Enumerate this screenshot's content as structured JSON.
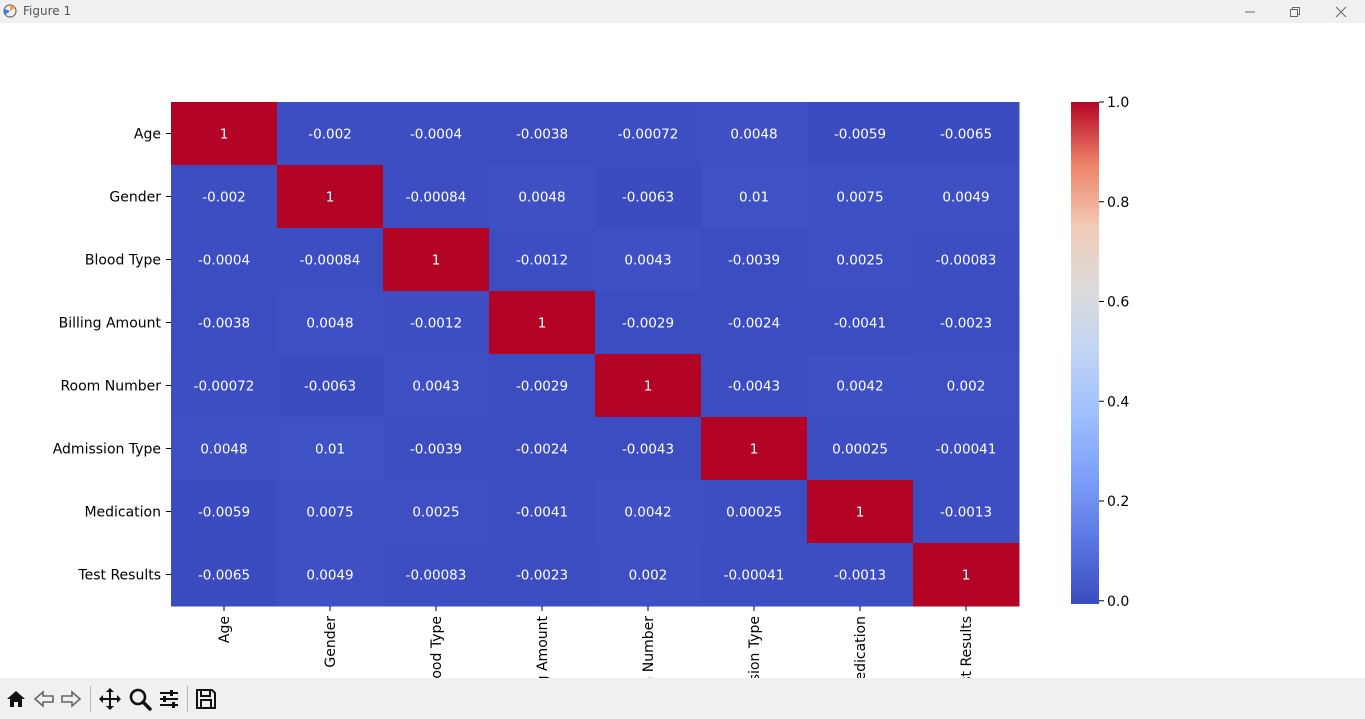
{
  "window": {
    "title": "Figure 1"
  },
  "toolbar": {
    "buttons": [
      "home-icon",
      "back-icon",
      "forward-icon",
      "pan-icon",
      "zoom-icon",
      "configure-icon",
      "save-icon"
    ]
  },
  "chart_data": {
    "type": "heatmap",
    "title": "",
    "xlabel": "",
    "ylabel": "",
    "colormap": "coolwarm",
    "row_labels": [
      "Age",
      "Gender",
      "Blood Type",
      "Billing Amount",
      "Room Number",
      "Admission Type",
      "Medication",
      "Test Results"
    ],
    "col_labels": [
      "Age",
      "Gender",
      "Blood Type",
      "Billing Amount",
      "Room Number",
      "Admission Type",
      "Medication",
      "Test Results"
    ],
    "values": [
      [
        1,
        -0.002,
        -0.0004,
        -0.0038,
        -0.00072,
        0.0048,
        -0.0059,
        -0.0065
      ],
      [
        -0.002,
        1,
        -0.00084,
        0.0048,
        -0.0063,
        0.01,
        0.0075,
        0.0049
      ],
      [
        -0.0004,
        -0.00084,
        1,
        -0.0012,
        0.0043,
        -0.0039,
        0.0025,
        -0.00083
      ],
      [
        -0.0038,
        0.0048,
        -0.0012,
        1,
        -0.0029,
        -0.0024,
        -0.0041,
        -0.0023
      ],
      [
        -0.00072,
        -0.0063,
        0.0043,
        -0.0029,
        1,
        -0.0043,
        0.0042,
        0.002
      ],
      [
        0.0048,
        0.01,
        -0.0039,
        -0.0024,
        -0.0043,
        1,
        0.00025,
        -0.00041
      ],
      [
        -0.0059,
        0.0075,
        0.0025,
        -0.0041,
        0.0042,
        0.00025,
        1,
        -0.0013
      ],
      [
        -0.0065,
        0.0049,
        -0.00083,
        -0.0023,
        0.002,
        -0.00041,
        -0.0013,
        1
      ]
    ],
    "colorbar": {
      "range": [
        -0.0065,
        1.0
      ],
      "ticks": [
        0.0,
        0.2,
        0.4,
        0.6,
        0.8,
        1.0
      ],
      "tick_labels": [
        "0.0",
        "0.2",
        "0.4",
        "0.6",
        "0.8",
        "1.0"
      ]
    }
  }
}
